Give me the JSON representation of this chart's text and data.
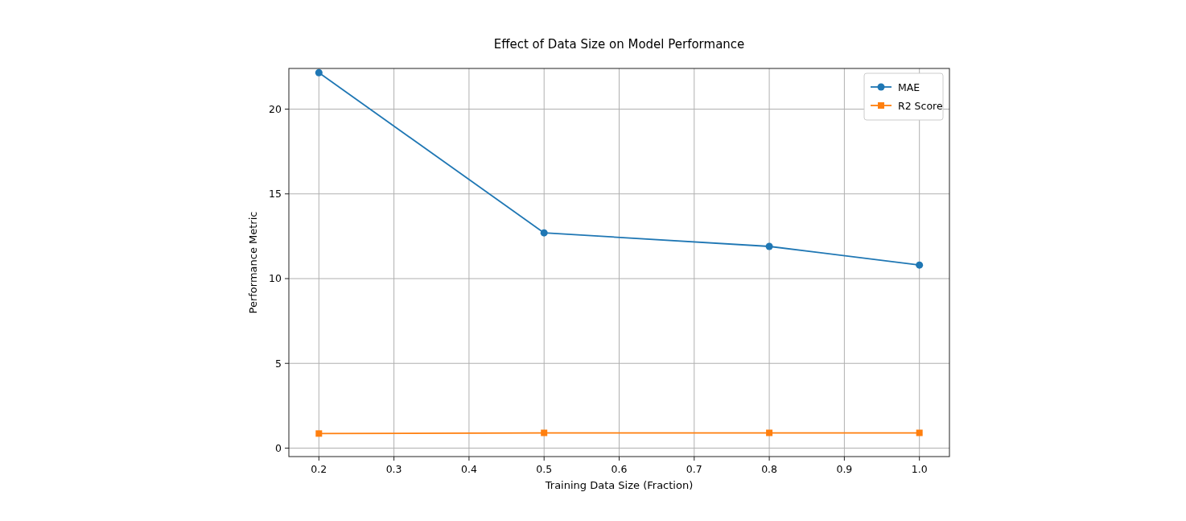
{
  "chart_data": {
    "type": "line",
    "title": "Effect of Data Size on Model Performance",
    "xlabel": "Training Data Size (Fraction)",
    "ylabel": "Performance Metric",
    "x": [
      0.2,
      0.5,
      0.8,
      1.0
    ],
    "series": [
      {
        "name": "MAE",
        "color": "#1f77b4",
        "marker": "circle",
        "values": [
          22.15,
          12.7,
          11.9,
          10.8
        ]
      },
      {
        "name": "R2 Score",
        "color": "#ff7f0e",
        "marker": "square",
        "values": [
          0.86,
          0.9,
          0.9,
          0.9
        ]
      }
    ],
    "xlim": [
      0.16,
      1.04
    ],
    "xticks": [
      {
        "value": 0.2,
        "label": "0.2"
      },
      {
        "value": 0.3,
        "label": "0.3"
      },
      {
        "value": 0.4,
        "label": "0.4"
      },
      {
        "value": 0.5,
        "label": "0.5"
      },
      {
        "value": 0.6,
        "label": "0.6"
      },
      {
        "value": 0.7,
        "label": "0.7"
      },
      {
        "value": 0.8,
        "label": "0.8"
      },
      {
        "value": 0.9,
        "label": "0.9"
      },
      {
        "value": 1.0,
        "label": "1.0"
      }
    ],
    "ylim": [
      -0.5,
      22.4
    ],
    "yticks": [
      0,
      5,
      10,
      15,
      20
    ],
    "grid": true,
    "legend": "top right",
    "line_style": "solid"
  }
}
